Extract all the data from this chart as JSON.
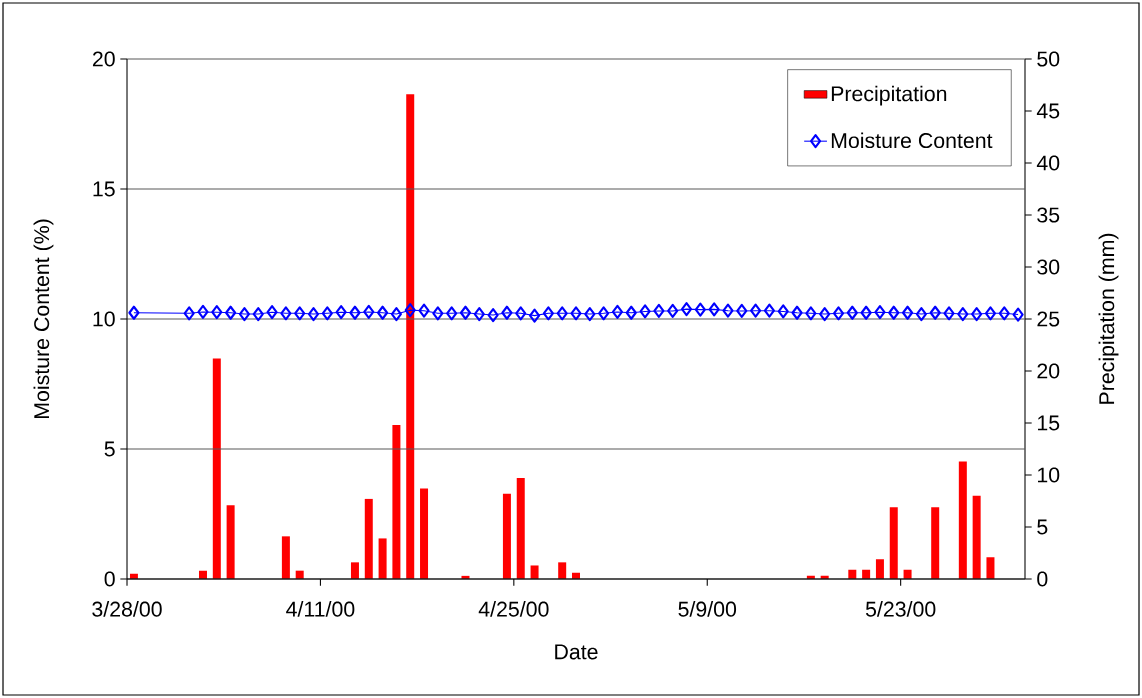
{
  "chart_data": {
    "type": "bar",
    "xlabel": "Date",
    "ylabel": "Moisture Content (%)",
    "y2label": "Precipitation (mm)",
    "xlim": [
      "2000-03-28",
      "2000-06-01"
    ],
    "xticks": [
      {
        "value": "2000-03-28",
        "label": "3/28/00"
      },
      {
        "value": "2000-04-11",
        "label": "4/11/00"
      },
      {
        "value": "2000-04-25",
        "label": "4/25/00"
      },
      {
        "value": "2000-05-09",
        "label": "5/9/00"
      },
      {
        "value": "2000-05-23",
        "label": "5/23/00"
      }
    ],
    "ylim": [
      0,
      20
    ],
    "yticks": [
      0,
      5,
      10,
      15,
      20
    ],
    "y2lim": [
      0,
      50
    ],
    "y2ticks": [
      0,
      5,
      10,
      15,
      20,
      25,
      30,
      35,
      40,
      45,
      50
    ],
    "grid": "y",
    "legend": "top right",
    "series": [
      {
        "name": "Precipitation",
        "axis": "y2",
        "color": "#ff0000",
        "x": [
          "2000-03-28T12:00",
          "2000-04-02T12:00",
          "2000-04-03T12:00",
          "2000-04-04T12:00",
          "2000-04-08T12:00",
          "2000-04-09T12:00",
          "2000-04-13T12:00",
          "2000-04-14T12:00",
          "2000-04-15T12:00",
          "2000-04-16T12:00",
          "2000-04-17T12:00",
          "2000-04-18T12:00",
          "2000-04-21T12:00",
          "2000-04-24T12:00",
          "2000-04-25T12:00",
          "2000-04-26T12:00",
          "2000-04-28T12:00",
          "2000-04-29T12:00",
          "2000-05-16T12:00",
          "2000-05-17T12:00",
          "2000-05-19T12:00",
          "2000-05-20T12:00",
          "2000-05-21T12:00",
          "2000-05-22T12:00",
          "2000-05-23T12:00",
          "2000-05-25T12:00",
          "2000-05-27T12:00",
          "2000-05-28T12:00",
          "2000-05-29T12:00"
        ],
        "values": [
          0.5,
          0.8,
          21.2,
          7.1,
          4.1,
          0.8,
          1.6,
          7.7,
          3.9,
          14.8,
          46.6,
          8.7,
          0.3,
          8.2,
          9.7,
          1.3,
          1.6,
          0.6,
          0.3,
          0.3,
          0.9,
          0.9,
          1.9,
          6.9,
          0.9,
          6.9,
          11.3,
          8.0,
          2.1
        ]
      },
      {
        "name": "Moisture Content",
        "type": "line",
        "axis": "y",
        "color": "#0000ff",
        "marker": "diamond",
        "line_style": "solid",
        "x": [
          "2000-03-28T12:00",
          "2000-04-01T12:00",
          "2000-04-02T12:00",
          "2000-04-03T12:00",
          "2000-04-04T12:00",
          "2000-04-05T12:00",
          "2000-04-06T12:00",
          "2000-04-07T12:00",
          "2000-04-08T12:00",
          "2000-04-09T12:00",
          "2000-04-10T12:00",
          "2000-04-11T12:00",
          "2000-04-12T12:00",
          "2000-04-13T12:00",
          "2000-04-14T12:00",
          "2000-04-15T12:00",
          "2000-04-16T12:00",
          "2000-04-17T12:00",
          "2000-04-18T12:00",
          "2000-04-19T12:00",
          "2000-04-20T12:00",
          "2000-04-21T12:00",
          "2000-04-22T12:00",
          "2000-04-23T12:00",
          "2000-04-24T12:00",
          "2000-04-25T12:00",
          "2000-04-26T12:00",
          "2000-04-27T12:00",
          "2000-04-28T12:00",
          "2000-04-29T12:00",
          "2000-04-30T12:00",
          "2000-05-01T12:00",
          "2000-05-02T12:00",
          "2000-05-03T12:00",
          "2000-05-04T12:00",
          "2000-05-05T12:00",
          "2000-05-06T12:00",
          "2000-05-07T12:00",
          "2000-05-08T12:00",
          "2000-05-09T12:00",
          "2000-05-10T12:00",
          "2000-05-11T12:00",
          "2000-05-12T12:00",
          "2000-05-13T12:00",
          "2000-05-14T12:00",
          "2000-05-15T12:00",
          "2000-05-16T12:00",
          "2000-05-17T12:00",
          "2000-05-18T12:00",
          "2000-05-19T12:00",
          "2000-05-20T12:00",
          "2000-05-21T12:00",
          "2000-05-22T12:00",
          "2000-05-23T12:00",
          "2000-05-24T12:00",
          "2000-05-25T12:00",
          "2000-05-26T12:00",
          "2000-05-27T12:00",
          "2000-05-28T12:00",
          "2000-05-29T12:00",
          "2000-05-30T12:00",
          "2000-05-31T12:00"
        ],
        "values": [
          10.24,
          10.22,
          10.27,
          10.26,
          10.24,
          10.19,
          10.19,
          10.26,
          10.22,
          10.22,
          10.19,
          10.22,
          10.26,
          10.24,
          10.27,
          10.24,
          10.19,
          10.34,
          10.32,
          10.22,
          10.22,
          10.24,
          10.19,
          10.15,
          10.24,
          10.22,
          10.13,
          10.22,
          10.22,
          10.22,
          10.19,
          10.22,
          10.27,
          10.24,
          10.29,
          10.31,
          10.31,
          10.38,
          10.36,
          10.37,
          10.32,
          10.31,
          10.32,
          10.32,
          10.29,
          10.24,
          10.22,
          10.19,
          10.22,
          10.24,
          10.24,
          10.26,
          10.24,
          10.24,
          10.19,
          10.24,
          10.22,
          10.19,
          10.19,
          10.22,
          10.22,
          10.17
        ]
      }
    ]
  }
}
